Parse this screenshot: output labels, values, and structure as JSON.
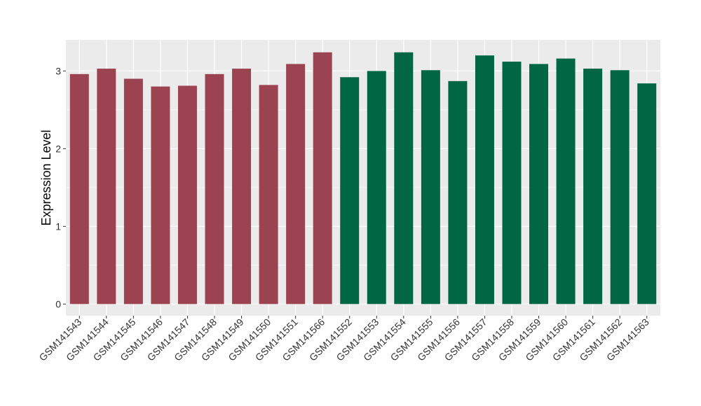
{
  "chart_data": {
    "type": "bar",
    "title": "",
    "xlabel": "",
    "ylabel": "Expression Level",
    "ylim": [
      -0.15,
      3.4
    ],
    "yticks": [
      0,
      1,
      2,
      3
    ],
    "grid": true,
    "legend": "none",
    "categories": [
      "GSM141543",
      "GSM141544",
      "GSM141545",
      "GSM141546",
      "GSM141547",
      "GSM141548",
      "GSM141549",
      "GSM141550",
      "GSM141551",
      "GSM141566",
      "GSM141552",
      "GSM141553",
      "GSM141554",
      "GSM141555",
      "GSM141556",
      "GSM141557",
      "GSM141558",
      "GSM141559",
      "GSM141560",
      "GSM141561",
      "GSM141562",
      "GSM141563"
    ],
    "values": [
      2.96,
      3.03,
      2.9,
      2.8,
      2.81,
      2.96,
      3.03,
      2.82,
      3.09,
      3.24,
      2.92,
      3.0,
      3.24,
      3.01,
      2.87,
      3.2,
      3.12,
      3.09,
      3.16,
      3.03,
      3.01,
      2.84
    ],
    "bar_colors": [
      "#9b4350",
      "#9b4350",
      "#9b4350",
      "#9b4350",
      "#9b4350",
      "#9b4350",
      "#9b4350",
      "#9b4350",
      "#9b4350",
      "#9b4350",
      "#006644",
      "#006644",
      "#006644",
      "#006644",
      "#006644",
      "#006644",
      "#006644",
      "#006644",
      "#006644",
      "#006644",
      "#006644",
      "#006644"
    ],
    "panel_background": "#ebebeb",
    "grid_color": "#ffffff"
  }
}
